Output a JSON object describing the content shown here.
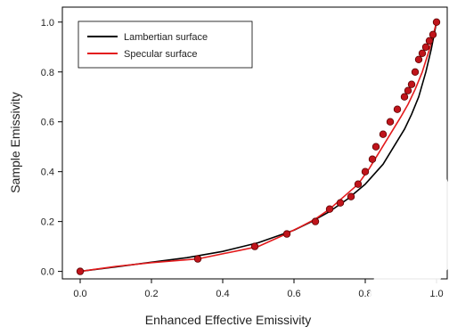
{
  "chart_data": {
    "type": "line",
    "xlabel": "Enhanced Effective Emissivity",
    "ylabel": "Sample Emissivity",
    "xlim": [
      -0.05,
      1.03
    ],
    "ylim": [
      -0.03,
      1.06
    ],
    "xticks": [
      0.0,
      0.2,
      0.4,
      0.6,
      0.8,
      1.0
    ],
    "yticks": [
      0.0,
      0.2,
      0.4,
      0.6,
      0.8,
      1.0
    ],
    "xtick_labels": [
      "0.0",
      "0.2",
      "0.4",
      "0.6",
      "0.8",
      "1.0"
    ],
    "ytick_labels": [
      "0.0",
      "0.2",
      "0.4",
      "0.6",
      "0.8",
      "1.0"
    ],
    "grid": false,
    "legend_position": "top-left",
    "series": [
      {
        "name": "Lambertian surface",
        "color": "#000000",
        "style": "line",
        "x": [
          0.0,
          0.1,
          0.2,
          0.3,
          0.4,
          0.5,
          0.55,
          0.6,
          0.65,
          0.7,
          0.75,
          0.8,
          0.85,
          0.88,
          0.91,
          0.93,
          0.95,
          0.97,
          0.985,
          1.0
        ],
        "y": [
          0.0,
          0.018,
          0.037,
          0.055,
          0.08,
          0.115,
          0.14,
          0.165,
          0.2,
          0.24,
          0.29,
          0.35,
          0.43,
          0.5,
          0.57,
          0.63,
          0.7,
          0.8,
          0.89,
          1.0
        ]
      },
      {
        "name": "Specular surface",
        "color": "#e31a1c",
        "style": "line",
        "x": [
          0.0,
          0.1,
          0.2,
          0.33,
          0.45,
          0.5,
          0.57,
          0.62,
          0.66,
          0.7,
          0.74,
          0.78,
          0.81,
          0.84,
          0.87,
          0.9,
          0.92,
          0.94,
          0.96,
          0.98,
          1.0
        ],
        "y": [
          0.0,
          0.02,
          0.035,
          0.05,
          0.085,
          0.1,
          0.145,
          0.18,
          0.21,
          0.25,
          0.3,
          0.35,
          0.41,
          0.48,
          0.55,
          0.62,
          0.67,
          0.73,
          0.8,
          0.89,
          1.0
        ]
      },
      {
        "name": "",
        "color": "#c0141b",
        "style": "markers",
        "x": [
          0.0,
          0.33,
          0.49,
          0.58,
          0.66,
          0.7,
          0.73,
          0.76,
          0.78,
          0.8,
          0.82,
          0.83,
          0.85,
          0.87,
          0.89,
          0.91,
          0.92,
          0.93,
          0.94,
          0.95,
          0.96,
          0.97,
          0.98,
          0.99,
          1.0
        ],
        "y": [
          0.0,
          0.05,
          0.1,
          0.15,
          0.2,
          0.25,
          0.275,
          0.3,
          0.35,
          0.4,
          0.45,
          0.5,
          0.55,
          0.6,
          0.65,
          0.7,
          0.725,
          0.75,
          0.8,
          0.85,
          0.875,
          0.9,
          0.925,
          0.95,
          1.0
        ]
      }
    ]
  }
}
